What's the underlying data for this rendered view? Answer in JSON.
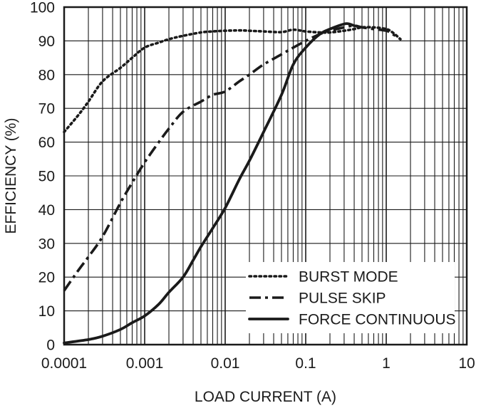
{
  "chart_data": {
    "type": "line",
    "title": "",
    "xlabel": "LOAD CURRENT (A)",
    "ylabel": "EFFICIENCY (%)",
    "x_scale": "log",
    "xlim": [
      0.0001,
      10
    ],
    "ylim": [
      0,
      100
    ],
    "grid": true,
    "legend_position": "bottom-right",
    "x_ticks": [
      "0.0001",
      "0.001",
      "0.01",
      "0.1",
      "1",
      "10"
    ],
    "y_ticks": [
      "0",
      "10",
      "20",
      "30",
      "40",
      "50",
      "60",
      "70",
      "80",
      "90",
      "100"
    ],
    "series": [
      {
        "name": "BURST MODE",
        "style": "dotted",
        "x": [
          0.0001,
          0.00015,
          0.0002,
          0.0003,
          0.0005,
          0.0007,
          0.001,
          0.0015,
          0.002,
          0.003,
          0.005,
          0.007,
          0.01,
          0.015,
          0.02,
          0.03,
          0.05,
          0.07,
          0.1,
          0.15,
          0.2,
          0.3,
          0.4,
          0.5,
          0.7,
          1.0,
          1.2,
          1.5
        ],
        "y": [
          63,
          68,
          72,
          78,
          82,
          85,
          88,
          89.5,
          90.5,
          91.5,
          92.5,
          92.8,
          93,
          93.1,
          93,
          92.8,
          92.6,
          93.3,
          92.8,
          92.5,
          92.5,
          93,
          93.5,
          94,
          94,
          93.5,
          92.5,
          90.5
        ]
      },
      {
        "name": "PULSE SKIP",
        "style": "dash-dot",
        "x": [
          0.0001,
          0.00015,
          0.0002,
          0.0003,
          0.0005,
          0.0007,
          0.001,
          0.0015,
          0.002,
          0.003,
          0.005,
          0.007,
          0.01,
          0.015,
          0.02,
          0.03,
          0.05,
          0.07,
          0.1,
          0.15,
          0.2,
          0.3,
          0.4,
          0.5,
          0.7,
          1.0,
          1.2,
          1.5
        ],
        "y": [
          16,
          22,
          26,
          32,
          42,
          48,
          54,
          60,
          64,
          69,
          72,
          74,
          75,
          78,
          80,
          83,
          86,
          88,
          90,
          92,
          93,
          94,
          94.5,
          94,
          93.5,
          93,
          92,
          90.5
        ]
      },
      {
        "name": "FORCE CONTINUOUS",
        "style": "solid",
        "x": [
          0.0001,
          0.0002,
          0.0003,
          0.0005,
          0.0007,
          0.001,
          0.0015,
          0.002,
          0.003,
          0.004,
          0.005,
          0.007,
          0.01,
          0.015,
          0.02,
          0.03,
          0.05,
          0.07,
          0.1,
          0.15,
          0.2,
          0.3,
          0.35,
          0.4,
          0.5
        ],
        "y": [
          0.5,
          1.5,
          2.5,
          4.5,
          6.5,
          8.5,
          12,
          15.5,
          20,
          25,
          29,
          34.5,
          40.5,
          49,
          54.5,
          63,
          74,
          83,
          88,
          92,
          93.5,
          95,
          95,
          94.5,
          94
        ]
      }
    ]
  }
}
